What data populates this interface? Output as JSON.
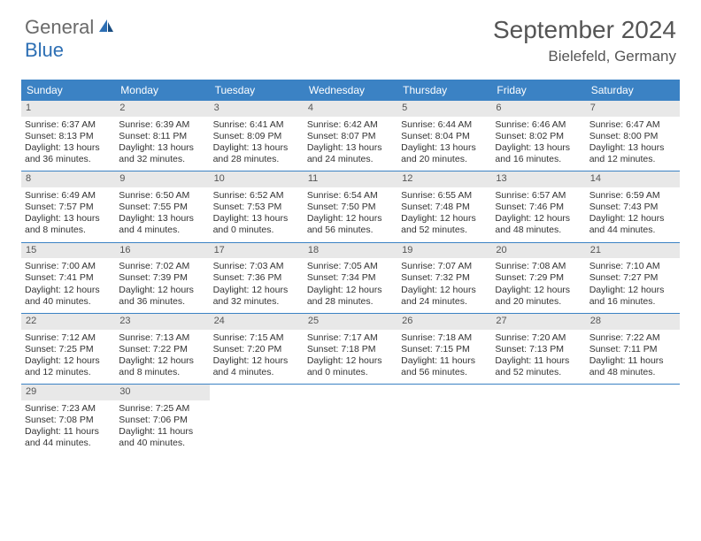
{
  "logo": {
    "general": "General",
    "blue": "Blue"
  },
  "title": "September 2024",
  "location": "Bielefeld, Germany",
  "colors": {
    "header_bg": "#3b82c4",
    "header_text": "#ffffff",
    "daynum_bg": "#e8e8e8",
    "border": "#3b82c4",
    "text": "#333333",
    "logo_gray": "#6a6a6a",
    "logo_blue": "#2d6fb4"
  },
  "day_labels": [
    "Sunday",
    "Monday",
    "Tuesday",
    "Wednesday",
    "Thursday",
    "Friday",
    "Saturday"
  ],
  "weeks": [
    [
      {
        "n": "1",
        "sr": "Sunrise: 6:37 AM",
        "ss": "Sunset: 8:13 PM",
        "d1": "Daylight: 13 hours",
        "d2": "and 36 minutes."
      },
      {
        "n": "2",
        "sr": "Sunrise: 6:39 AM",
        "ss": "Sunset: 8:11 PM",
        "d1": "Daylight: 13 hours",
        "d2": "and 32 minutes."
      },
      {
        "n": "3",
        "sr": "Sunrise: 6:41 AM",
        "ss": "Sunset: 8:09 PM",
        "d1": "Daylight: 13 hours",
        "d2": "and 28 minutes."
      },
      {
        "n": "4",
        "sr": "Sunrise: 6:42 AM",
        "ss": "Sunset: 8:07 PM",
        "d1": "Daylight: 13 hours",
        "d2": "and 24 minutes."
      },
      {
        "n": "5",
        "sr": "Sunrise: 6:44 AM",
        "ss": "Sunset: 8:04 PM",
        "d1": "Daylight: 13 hours",
        "d2": "and 20 minutes."
      },
      {
        "n": "6",
        "sr": "Sunrise: 6:46 AM",
        "ss": "Sunset: 8:02 PM",
        "d1": "Daylight: 13 hours",
        "d2": "and 16 minutes."
      },
      {
        "n": "7",
        "sr": "Sunrise: 6:47 AM",
        "ss": "Sunset: 8:00 PM",
        "d1": "Daylight: 13 hours",
        "d2": "and 12 minutes."
      }
    ],
    [
      {
        "n": "8",
        "sr": "Sunrise: 6:49 AM",
        "ss": "Sunset: 7:57 PM",
        "d1": "Daylight: 13 hours",
        "d2": "and 8 minutes."
      },
      {
        "n": "9",
        "sr": "Sunrise: 6:50 AM",
        "ss": "Sunset: 7:55 PM",
        "d1": "Daylight: 13 hours",
        "d2": "and 4 minutes."
      },
      {
        "n": "10",
        "sr": "Sunrise: 6:52 AM",
        "ss": "Sunset: 7:53 PM",
        "d1": "Daylight: 13 hours",
        "d2": "and 0 minutes."
      },
      {
        "n": "11",
        "sr": "Sunrise: 6:54 AM",
        "ss": "Sunset: 7:50 PM",
        "d1": "Daylight: 12 hours",
        "d2": "and 56 minutes."
      },
      {
        "n": "12",
        "sr": "Sunrise: 6:55 AM",
        "ss": "Sunset: 7:48 PM",
        "d1": "Daylight: 12 hours",
        "d2": "and 52 minutes."
      },
      {
        "n": "13",
        "sr": "Sunrise: 6:57 AM",
        "ss": "Sunset: 7:46 PM",
        "d1": "Daylight: 12 hours",
        "d2": "and 48 minutes."
      },
      {
        "n": "14",
        "sr": "Sunrise: 6:59 AM",
        "ss": "Sunset: 7:43 PM",
        "d1": "Daylight: 12 hours",
        "d2": "and 44 minutes."
      }
    ],
    [
      {
        "n": "15",
        "sr": "Sunrise: 7:00 AM",
        "ss": "Sunset: 7:41 PM",
        "d1": "Daylight: 12 hours",
        "d2": "and 40 minutes."
      },
      {
        "n": "16",
        "sr": "Sunrise: 7:02 AM",
        "ss": "Sunset: 7:39 PM",
        "d1": "Daylight: 12 hours",
        "d2": "and 36 minutes."
      },
      {
        "n": "17",
        "sr": "Sunrise: 7:03 AM",
        "ss": "Sunset: 7:36 PM",
        "d1": "Daylight: 12 hours",
        "d2": "and 32 minutes."
      },
      {
        "n": "18",
        "sr": "Sunrise: 7:05 AM",
        "ss": "Sunset: 7:34 PM",
        "d1": "Daylight: 12 hours",
        "d2": "and 28 minutes."
      },
      {
        "n": "19",
        "sr": "Sunrise: 7:07 AM",
        "ss": "Sunset: 7:32 PM",
        "d1": "Daylight: 12 hours",
        "d2": "and 24 minutes."
      },
      {
        "n": "20",
        "sr": "Sunrise: 7:08 AM",
        "ss": "Sunset: 7:29 PM",
        "d1": "Daylight: 12 hours",
        "d2": "and 20 minutes."
      },
      {
        "n": "21",
        "sr": "Sunrise: 7:10 AM",
        "ss": "Sunset: 7:27 PM",
        "d1": "Daylight: 12 hours",
        "d2": "and 16 minutes."
      }
    ],
    [
      {
        "n": "22",
        "sr": "Sunrise: 7:12 AM",
        "ss": "Sunset: 7:25 PM",
        "d1": "Daylight: 12 hours",
        "d2": "and 12 minutes."
      },
      {
        "n": "23",
        "sr": "Sunrise: 7:13 AM",
        "ss": "Sunset: 7:22 PM",
        "d1": "Daylight: 12 hours",
        "d2": "and 8 minutes."
      },
      {
        "n": "24",
        "sr": "Sunrise: 7:15 AM",
        "ss": "Sunset: 7:20 PM",
        "d1": "Daylight: 12 hours",
        "d2": "and 4 minutes."
      },
      {
        "n": "25",
        "sr": "Sunrise: 7:17 AM",
        "ss": "Sunset: 7:18 PM",
        "d1": "Daylight: 12 hours",
        "d2": "and 0 minutes."
      },
      {
        "n": "26",
        "sr": "Sunrise: 7:18 AM",
        "ss": "Sunset: 7:15 PM",
        "d1": "Daylight: 11 hours",
        "d2": "and 56 minutes."
      },
      {
        "n": "27",
        "sr": "Sunrise: 7:20 AM",
        "ss": "Sunset: 7:13 PM",
        "d1": "Daylight: 11 hours",
        "d2": "and 52 minutes."
      },
      {
        "n": "28",
        "sr": "Sunrise: 7:22 AM",
        "ss": "Sunset: 7:11 PM",
        "d1": "Daylight: 11 hours",
        "d2": "and 48 minutes."
      }
    ],
    [
      {
        "n": "29",
        "sr": "Sunrise: 7:23 AM",
        "ss": "Sunset: 7:08 PM",
        "d1": "Daylight: 11 hours",
        "d2": "and 44 minutes."
      },
      {
        "n": "30",
        "sr": "Sunrise: 7:25 AM",
        "ss": "Sunset: 7:06 PM",
        "d1": "Daylight: 11 hours",
        "d2": "and 40 minutes."
      },
      {
        "empty": true
      },
      {
        "empty": true
      },
      {
        "empty": true
      },
      {
        "empty": true
      },
      {
        "empty": true
      }
    ]
  ]
}
